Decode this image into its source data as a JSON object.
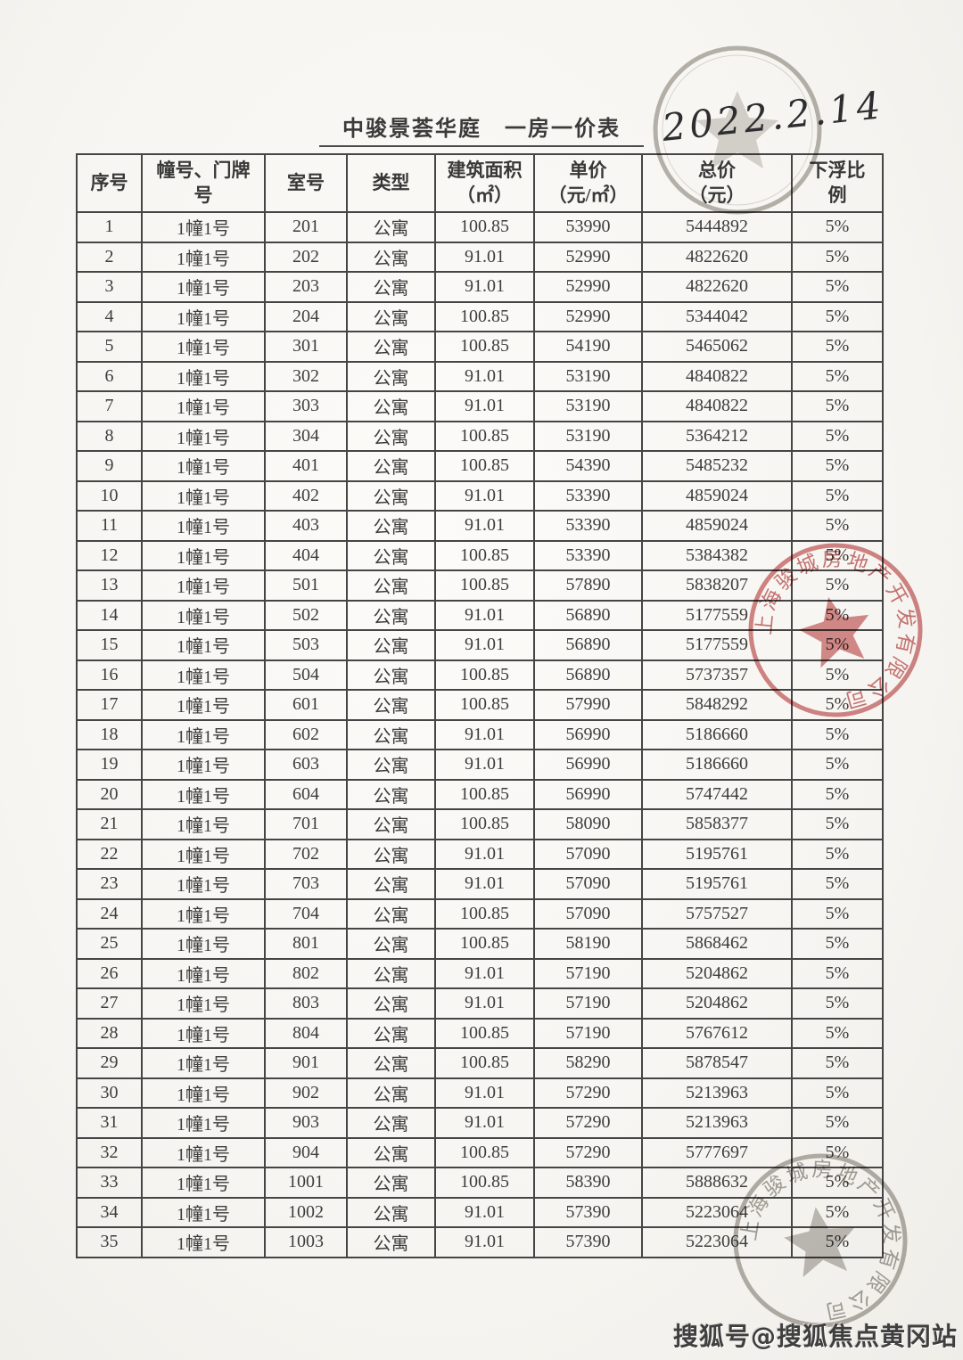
{
  "page": {
    "title": "中骏景荟华庭　一房一价表",
    "handwritten_date": "2022.2.14",
    "watermark": "搜狐号@搜狐焦点黄冈站"
  },
  "table": {
    "columns": [
      {
        "key": "no",
        "label": "序号"
      },
      {
        "key": "building",
        "label": "幢号、门牌\n号"
      },
      {
        "key": "room",
        "label": "室号"
      },
      {
        "key": "type",
        "label": "类型"
      },
      {
        "key": "area",
        "label": "建筑面积\n（㎡）"
      },
      {
        "key": "unit_price",
        "label": "单价\n（元/㎡）"
      },
      {
        "key": "total_price",
        "label": "总价\n（元）"
      },
      {
        "key": "ratio",
        "label": "下浮比\n例"
      }
    ],
    "rows": [
      [
        "1",
        "1幢1号",
        "201",
        "公寓",
        "100.85",
        "53990",
        "5444892",
        "5%"
      ],
      [
        "2",
        "1幢1号",
        "202",
        "公寓",
        "91.01",
        "52990",
        "4822620",
        "5%"
      ],
      [
        "3",
        "1幢1号",
        "203",
        "公寓",
        "91.01",
        "52990",
        "4822620",
        "5%"
      ],
      [
        "4",
        "1幢1号",
        "204",
        "公寓",
        "100.85",
        "52990",
        "5344042",
        "5%"
      ],
      [
        "5",
        "1幢1号",
        "301",
        "公寓",
        "100.85",
        "54190",
        "5465062",
        "5%"
      ],
      [
        "6",
        "1幢1号",
        "302",
        "公寓",
        "91.01",
        "53190",
        "4840822",
        "5%"
      ],
      [
        "7",
        "1幢1号",
        "303",
        "公寓",
        "91.01",
        "53190",
        "4840822",
        "5%"
      ],
      [
        "8",
        "1幢1号",
        "304",
        "公寓",
        "100.85",
        "53190",
        "5364212",
        "5%"
      ],
      [
        "9",
        "1幢1号",
        "401",
        "公寓",
        "100.85",
        "54390",
        "5485232",
        "5%"
      ],
      [
        "10",
        "1幢1号",
        "402",
        "公寓",
        "91.01",
        "53390",
        "4859024",
        "5%"
      ],
      [
        "11",
        "1幢1号",
        "403",
        "公寓",
        "91.01",
        "53390",
        "4859024",
        "5%"
      ],
      [
        "12",
        "1幢1号",
        "404",
        "公寓",
        "100.85",
        "53390",
        "5384382",
        "5%"
      ],
      [
        "13",
        "1幢1号",
        "501",
        "公寓",
        "100.85",
        "57890",
        "5838207",
        "5%"
      ],
      [
        "14",
        "1幢1号",
        "502",
        "公寓",
        "91.01",
        "56890",
        "5177559",
        "5%"
      ],
      [
        "15",
        "1幢1号",
        "503",
        "公寓",
        "91.01",
        "56890",
        "5177559",
        "5%"
      ],
      [
        "16",
        "1幢1号",
        "504",
        "公寓",
        "100.85",
        "56890",
        "5737357",
        "5%"
      ],
      [
        "17",
        "1幢1号",
        "601",
        "公寓",
        "100.85",
        "57990",
        "5848292",
        "5%"
      ],
      [
        "18",
        "1幢1号",
        "602",
        "公寓",
        "91.01",
        "56990",
        "5186660",
        "5%"
      ],
      [
        "19",
        "1幢1号",
        "603",
        "公寓",
        "91.01",
        "56990",
        "5186660",
        "5%"
      ],
      [
        "20",
        "1幢1号",
        "604",
        "公寓",
        "100.85",
        "56990",
        "5747442",
        "5%"
      ],
      [
        "21",
        "1幢1号",
        "701",
        "公寓",
        "100.85",
        "58090",
        "5858377",
        "5%"
      ],
      [
        "22",
        "1幢1号",
        "702",
        "公寓",
        "91.01",
        "57090",
        "5195761",
        "5%"
      ],
      [
        "23",
        "1幢1号",
        "703",
        "公寓",
        "91.01",
        "57090",
        "5195761",
        "5%"
      ],
      [
        "24",
        "1幢1号",
        "704",
        "公寓",
        "100.85",
        "57090",
        "5757527",
        "5%"
      ],
      [
        "25",
        "1幢1号",
        "801",
        "公寓",
        "100.85",
        "58190",
        "5868462",
        "5%"
      ],
      [
        "26",
        "1幢1号",
        "802",
        "公寓",
        "91.01",
        "57190",
        "5204862",
        "5%"
      ],
      [
        "27",
        "1幢1号",
        "803",
        "公寓",
        "91.01",
        "57190",
        "5204862",
        "5%"
      ],
      [
        "28",
        "1幢1号",
        "804",
        "公寓",
        "100.85",
        "57190",
        "5767612",
        "5%"
      ],
      [
        "29",
        "1幢1号",
        "901",
        "公寓",
        "100.85",
        "58290",
        "5878547",
        "5%"
      ],
      [
        "30",
        "1幢1号",
        "902",
        "公寓",
        "91.01",
        "57290",
        "5213963",
        "5%"
      ],
      [
        "31",
        "1幢1号",
        "903",
        "公寓",
        "91.01",
        "57290",
        "5213963",
        "5%"
      ],
      [
        "32",
        "1幢1号",
        "904",
        "公寓",
        "100.85",
        "57290",
        "5777697",
        "5%"
      ],
      [
        "33",
        "1幢1号",
        "1001",
        "公寓",
        "100.85",
        "58390",
        "5888632",
        "5%"
      ],
      [
        "34",
        "1幢1号",
        "1002",
        "公寓",
        "91.01",
        "57390",
        "5223064",
        "5%"
      ],
      [
        "35",
        "1幢1号",
        "1003",
        "公寓",
        "91.01",
        "57390",
        "5223064",
        "5%"
      ]
    ]
  },
  "stamps": {
    "middle": {
      "text": "上海骏城房地产开发有限公司",
      "color": "#c56868"
    },
    "bottom": {
      "text": "上海骏城房地产开发有限公司",
      "color": "#8f8c85"
    },
    "top": {
      "color": "#a09d96"
    }
  }
}
